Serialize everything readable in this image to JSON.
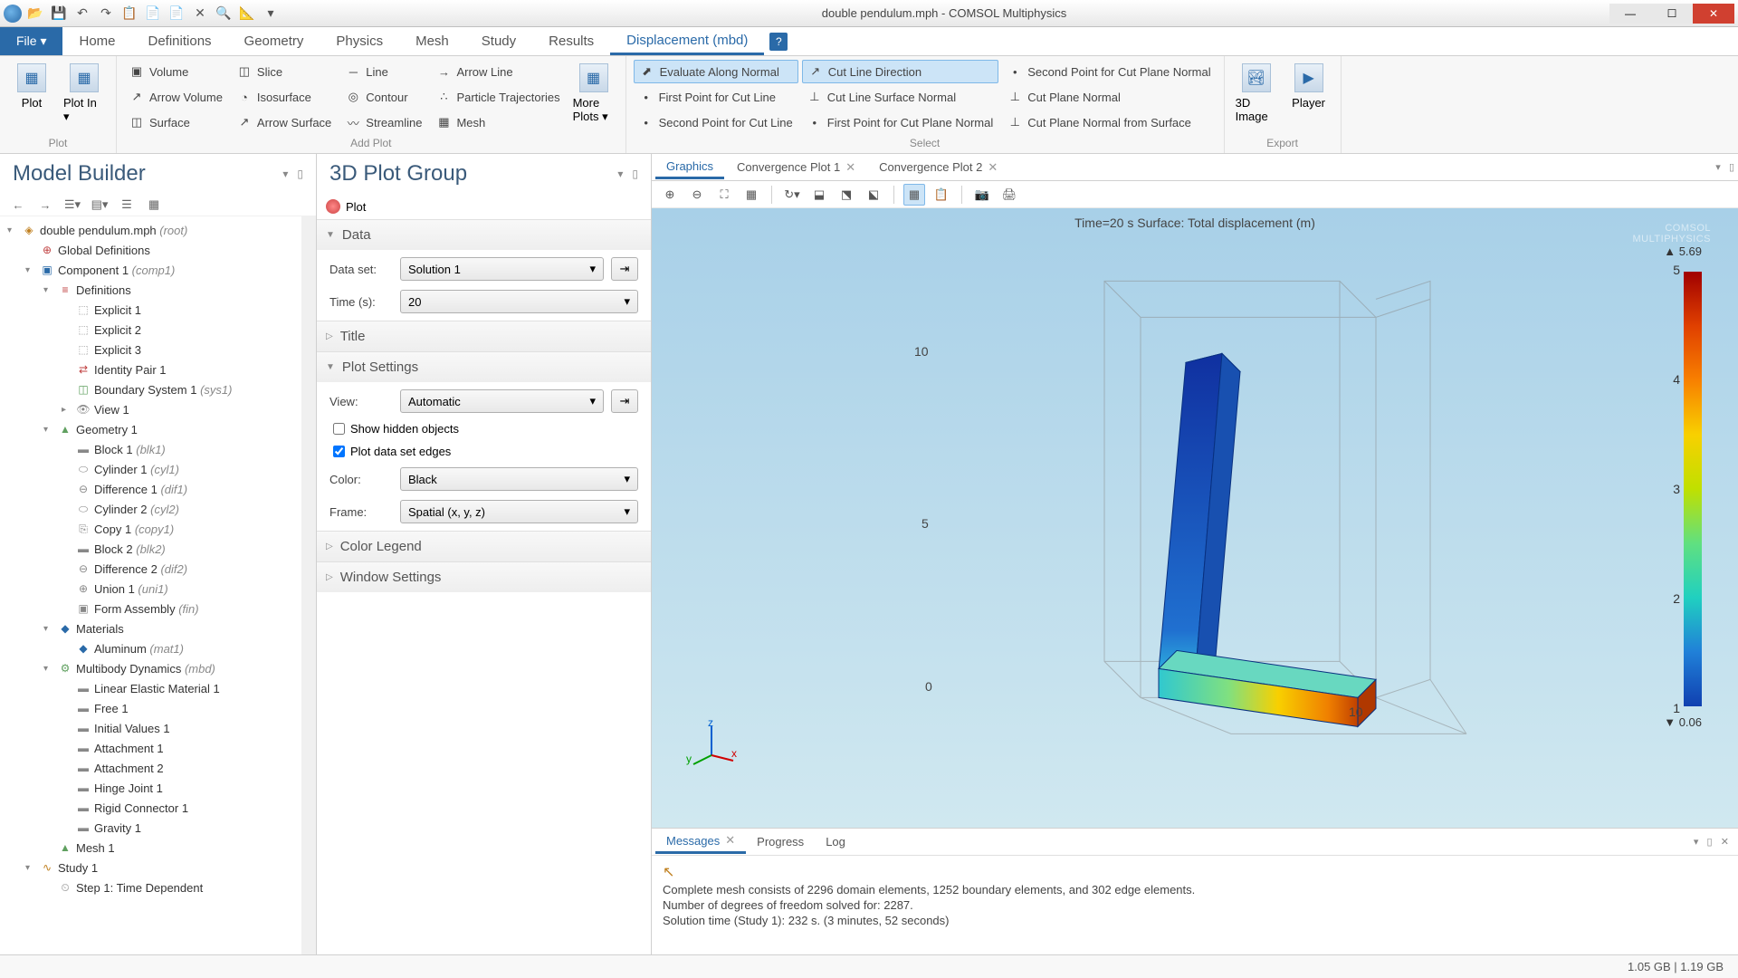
{
  "window": {
    "title": "double pendulum.mph - COMSOL Multiphysics"
  },
  "qat": [
    "📂",
    "💾",
    "↶",
    "↷",
    "📋",
    "📄",
    "📄",
    "✕",
    "🔍",
    "📐",
    "▾"
  ],
  "menu": {
    "file": "File ▾",
    "tabs": [
      "Home",
      "Definitions",
      "Geometry",
      "Physics",
      "Mesh",
      "Study",
      "Results",
      "Displacement (mbd)"
    ],
    "active_index": 7
  },
  "ribbon": {
    "groups": [
      {
        "label": "Plot",
        "big": [
          {
            "name": "plot",
            "label": "Plot",
            "glyph": "▦"
          },
          {
            "name": "plot-in",
            "label": "Plot In ▾",
            "glyph": "▦"
          }
        ]
      },
      {
        "label": "Add Plot",
        "cols": [
          [
            {
              "name": "volume",
              "label": "Volume",
              "glyph": "▣"
            },
            {
              "name": "arrow-volume",
              "label": "Arrow Volume",
              "glyph": "↗"
            },
            {
              "name": "surface",
              "label": "Surface",
              "glyph": "◫"
            }
          ],
          [
            {
              "name": "slice",
              "label": "Slice",
              "glyph": "◫"
            },
            {
              "name": "isosurface",
              "label": "Isosurface",
              "glyph": "◔"
            },
            {
              "name": "arrow-surface",
              "label": "Arrow Surface",
              "glyph": "↗"
            }
          ],
          [
            {
              "name": "line",
              "label": "Line",
              "glyph": "─"
            },
            {
              "name": "contour",
              "label": "Contour",
              "glyph": "◎"
            },
            {
              "name": "streamline",
              "label": "Streamline",
              "glyph": "〰"
            }
          ],
          [
            {
              "name": "arrow-line",
              "label": "Arrow Line",
              "glyph": "→"
            },
            {
              "name": "particle-traj",
              "label": "Particle Trajectories",
              "glyph": "∴"
            },
            {
              "name": "mesh-plot",
              "label": "Mesh",
              "glyph": "▦"
            }
          ]
        ],
        "big_after": [
          {
            "name": "more-plots",
            "label": "More Plots ▾",
            "glyph": "▦"
          }
        ]
      },
      {
        "label": "Select",
        "cols": [
          [
            {
              "name": "eval-along-normal",
              "label": "Evaluate Along Normal",
              "glyph": "⬈",
              "hl": true
            },
            {
              "name": "first-pt-cut-line",
              "label": "First Point for Cut Line",
              "glyph": "•"
            },
            {
              "name": "second-pt-cut-line",
              "label": "Second Point for Cut Line",
              "glyph": "•"
            }
          ],
          [
            {
              "name": "cut-line-direction",
              "label": "Cut Line Direction",
              "glyph": "↗",
              "hl": true
            },
            {
              "name": "cut-line-surface-normal",
              "label": "Cut Line Surface Normal",
              "glyph": "⊥"
            },
            {
              "name": "first-pt-cut-plane-normal",
              "label": "First Point for Cut Plane Normal",
              "glyph": "•"
            }
          ],
          [
            {
              "name": "second-pt-cut-plane-normal",
              "label": "Second Point for Cut Plane Normal",
              "glyph": "•"
            },
            {
              "name": "cut-plane-normal",
              "label": "Cut Plane Normal",
              "glyph": "⊥"
            },
            {
              "name": "cut-plane-normal-from-surface",
              "label": "Cut Plane Normal from Surface",
              "glyph": "⊥"
            }
          ]
        ]
      },
      {
        "label": "Export",
        "big": [
          {
            "name": "3d-image",
            "label": "3D Image",
            "glyph": "🏞"
          },
          {
            "name": "player",
            "label": "Player",
            "glyph": "▶"
          }
        ]
      }
    ]
  },
  "model_builder": {
    "title": "Model Builder",
    "toolbar_glyphs": [
      "←",
      "→",
      "☰▾",
      "▤▾",
      "☰",
      "▦"
    ],
    "tree": [
      {
        "d": 0,
        "exp": "▾",
        "ico": "◈",
        "label": "double pendulum.mph ",
        "em": "(root)",
        "color": "#c08020"
      },
      {
        "d": 1,
        "exp": "",
        "ico": "⊕",
        "label": "Global Definitions",
        "color": "#c04040"
      },
      {
        "d": 1,
        "exp": "▾",
        "ico": "▣",
        "label": "Component 1 ",
        "em": "(comp1)",
        "color": "#2a6aa8"
      },
      {
        "d": 2,
        "exp": "▾",
        "ico": "≡",
        "label": "Definitions",
        "color": "#c04040"
      },
      {
        "d": 3,
        "exp": "",
        "ico": "⬚",
        "label": "Explicit 1",
        "color": "#a0a0a0"
      },
      {
        "d": 3,
        "exp": "",
        "ico": "⬚",
        "label": "Explicit 2",
        "color": "#a0a0a0"
      },
      {
        "d": 3,
        "exp": "",
        "ico": "⬚",
        "label": "Explicit 3",
        "color": "#a0a0a0"
      },
      {
        "d": 3,
        "exp": "",
        "ico": "⇄",
        "label": "Identity Pair 1",
        "color": "#c04040"
      },
      {
        "d": 3,
        "exp": "",
        "ico": "◫",
        "label": "Boundary System 1 ",
        "em": "(sys1)",
        "color": "#60a060"
      },
      {
        "d": 3,
        "exp": "▸",
        "ico": "👁",
        "label": "View 1",
        "color": "#888"
      },
      {
        "d": 2,
        "exp": "▾",
        "ico": "▲",
        "label": "Geometry 1",
        "color": "#60a060"
      },
      {
        "d": 3,
        "exp": "",
        "ico": "▬",
        "label": "Block 1 ",
        "em": "(blk1)",
        "color": "#888"
      },
      {
        "d": 3,
        "exp": "",
        "ico": "⬭",
        "label": "Cylinder 1 ",
        "em": "(cyl1)",
        "color": "#888"
      },
      {
        "d": 3,
        "exp": "",
        "ico": "⊖",
        "label": "Difference 1 ",
        "em": "(dif1)",
        "color": "#888"
      },
      {
        "d": 3,
        "exp": "",
        "ico": "⬭",
        "label": "Cylinder 2 ",
        "em": "(cyl2)",
        "color": "#888"
      },
      {
        "d": 3,
        "exp": "",
        "ico": "⎘",
        "label": "Copy 1 ",
        "em": "(copy1)",
        "color": "#888"
      },
      {
        "d": 3,
        "exp": "",
        "ico": "▬",
        "label": "Block 2 ",
        "em": "(blk2)",
        "color": "#888"
      },
      {
        "d": 3,
        "exp": "",
        "ico": "⊖",
        "label": "Difference 2 ",
        "em": "(dif2)",
        "color": "#888"
      },
      {
        "d": 3,
        "exp": "",
        "ico": "⊕",
        "label": "Union 1 ",
        "em": "(uni1)",
        "color": "#888"
      },
      {
        "d": 3,
        "exp": "",
        "ico": "▣",
        "label": "Form Assembly ",
        "em": "(fin)",
        "color": "#888"
      },
      {
        "d": 2,
        "exp": "▾",
        "ico": "◆",
        "label": "Materials",
        "color": "#2a6aa8"
      },
      {
        "d": 3,
        "exp": "",
        "ico": "◆",
        "label": "Aluminum ",
        "em": "(mat1)",
        "color": "#2a6aa8"
      },
      {
        "d": 2,
        "exp": "▾",
        "ico": "⚙",
        "label": "Multibody Dynamics ",
        "em": "(mbd)",
        "color": "#60a060"
      },
      {
        "d": 3,
        "exp": "",
        "ico": "▬",
        "label": "Linear Elastic Material 1",
        "color": "#888"
      },
      {
        "d": 3,
        "exp": "",
        "ico": "▬",
        "label": "Free 1",
        "color": "#888"
      },
      {
        "d": 3,
        "exp": "",
        "ico": "▬",
        "label": "Initial Values 1",
        "color": "#888"
      },
      {
        "d": 3,
        "exp": "",
        "ico": "▬",
        "label": "Attachment 1",
        "color": "#888"
      },
      {
        "d": 3,
        "exp": "",
        "ico": "▬",
        "label": "Attachment 2",
        "color": "#888"
      },
      {
        "d": 3,
        "exp": "",
        "ico": "▬",
        "label": "Hinge Joint 1",
        "color": "#888"
      },
      {
        "d": 3,
        "exp": "",
        "ico": "▬",
        "label": "Rigid Connector 1",
        "color": "#888"
      },
      {
        "d": 3,
        "exp": "",
        "ico": "▬",
        "label": "Gravity 1",
        "color": "#888"
      },
      {
        "d": 2,
        "exp": "",
        "ico": "▲",
        "label": "Mesh 1",
        "color": "#60a060"
      },
      {
        "d": 1,
        "exp": "▾",
        "ico": "∿",
        "label": "Study 1",
        "color": "#c08020"
      },
      {
        "d": 2,
        "exp": "",
        "ico": "⏲",
        "label": "Step 1: Time Dependent",
        "color": "#888"
      }
    ]
  },
  "settings": {
    "title": "3D Plot Group",
    "plot_btn": "Plot",
    "sections": {
      "data": {
        "label": "Data",
        "open": true,
        "dataset_label": "Data set:",
        "dataset_value": "Solution 1",
        "time_label": "Time (s):",
        "time_value": "20"
      },
      "title": {
        "label": "Title",
        "open": false
      },
      "plot_settings": {
        "label": "Plot Settings",
        "open": true,
        "view_label": "View:",
        "view_value": "Automatic",
        "show_hidden": "Show hidden objects",
        "show_hidden_checked": false,
        "plot_edges": "Plot data set edges",
        "plot_edges_checked": true,
        "color_label": "Color:",
        "color_value": "Black",
        "frame_label": "Frame:",
        "frame_value": "Spatial  (x, y, z)"
      },
      "color_legend": {
        "label": "Color Legend",
        "open": false
      },
      "window_settings": {
        "label": "Window Settings",
        "open": false
      }
    }
  },
  "graphics": {
    "tabs": [
      {
        "label": "Graphics",
        "active": true
      },
      {
        "label": "Convergence Plot 1",
        "close": true
      },
      {
        "label": "Convergence Plot 2",
        "close": true
      }
    ],
    "toolbar_glyphs": [
      "⊕",
      "⊖",
      "⛶",
      "▦",
      "|",
      "↻▾",
      "⬓",
      "⬔",
      "⬕",
      "|",
      "▦",
      "📋",
      "|",
      "📷",
      "🖨"
    ],
    "toolbar_active": [
      false,
      false,
      false,
      false,
      false,
      false,
      false,
      false,
      false,
      false,
      true,
      false,
      false,
      false,
      false
    ],
    "title": "Time=20 s   Surface: Total displacement (m)",
    "colorbar": {
      "max": "▲ 5.69",
      "min": "▼ 0.06",
      "ticks": [
        "5",
        "4",
        "3",
        "2",
        "1"
      ]
    },
    "axis_labels": {
      "z10": "10",
      "z5": "5",
      "z0": "0",
      "x10": "10"
    },
    "watermark": "COMSOL\nMULTIPHYSICS"
  },
  "messages": {
    "tabs": [
      {
        "label": "Messages",
        "close": true
      },
      {
        "label": "Progress"
      },
      {
        "label": "Log"
      }
    ],
    "lines": [
      "Complete mesh consists of 2296 domain elements, 1252 boundary elements, and 302 edge elements.",
      "Number of degrees of freedom solved for: 2287.",
      "Solution time (Study 1): 232 s. (3 minutes, 52 seconds)"
    ]
  },
  "status": {
    "memory": "1.05 GB | 1.19 GB"
  },
  "colors": {
    "accent": "#2a6aa8",
    "pendulum_top": "#1030a0",
    "pendulum_mid": "#2080d8",
    "pendulum_hinge": "#30c8d0",
    "pendulum_end_y": "#f8d000",
    "pendulum_end_r": "#d04000"
  }
}
